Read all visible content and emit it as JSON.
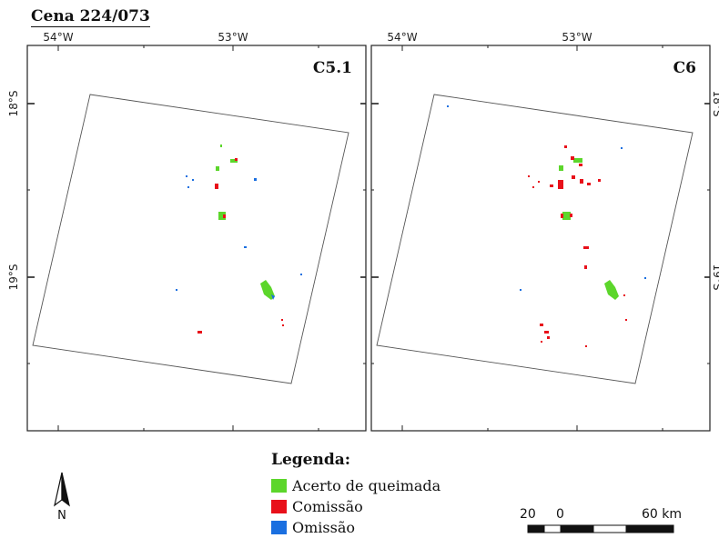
{
  "title": "Cena 224/073",
  "panels": [
    {
      "label": "C5.1"
    },
    {
      "label": "C6"
    }
  ],
  "grid_labels": {
    "lon": [
      "54°W",
      "53°W"
    ],
    "lat": [
      "18°S",
      "19°S"
    ]
  },
  "legend": {
    "title": "Legenda:",
    "items": [
      {
        "label": "Acerto de queimada",
        "color": "#5cd62b"
      },
      {
        "label": "Comissão",
        "color": "#e8101a"
      },
      {
        "label": "Omissão",
        "color": "#1a6fe0"
      }
    ]
  },
  "scale_bar": {
    "labels": [
      "20",
      "0",
      "60 km"
    ]
  },
  "north_arrow": {
    "label": "N"
  }
}
